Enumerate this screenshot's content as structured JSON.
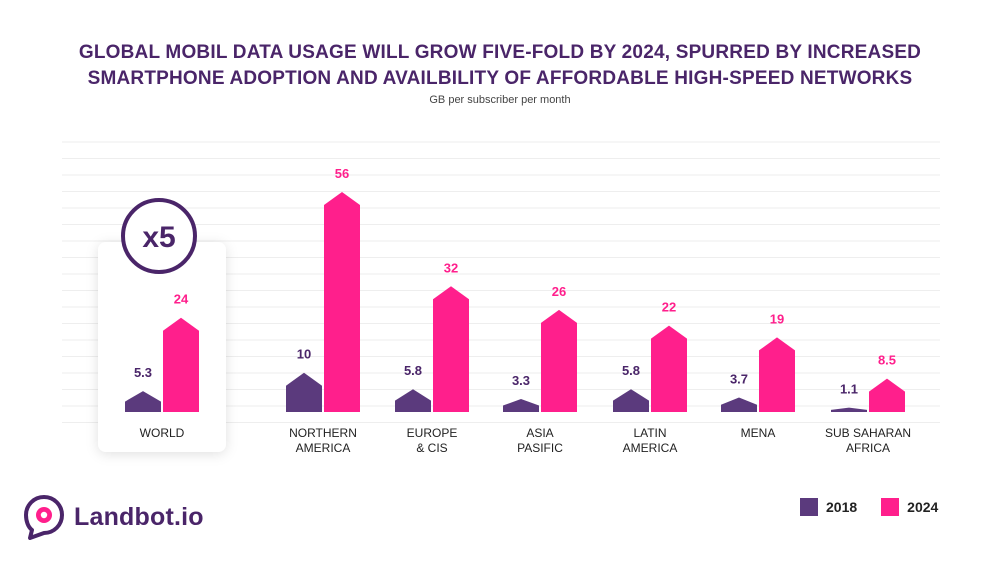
{
  "title_line1": "GLOBAL MOBIL DATA USAGE WILL GROW FIVE-FOLD BY 2024, SPURRED BY INCREASED",
  "title_line2": "SMARTPHONE ADOPTION AND AVAILBILITY OF AFFORDABLE HIGH-SPEED NETWORKS",
  "subtitle": "GB per subscriber per month",
  "badge": "x5",
  "logo_text": "Landbot.io",
  "colors": {
    "series_2018": "#5b3a7d",
    "series_2024": "#ff1f8c",
    "title": "#4a2569"
  },
  "chart_data": {
    "type": "bar",
    "title": "GLOBAL MOBIL DATA USAGE WILL GROW FIVE-FOLD BY 2024, SPURRED BY INCREASED SMARTPHONE ADOPTION AND AVAILBILITY OF AFFORDABLE HIGH-SPEED NETWORKS",
    "subtitle": "GB per subscriber per month",
    "categories": [
      [
        "WORLD"
      ],
      [
        "NORTHERN",
        "AMERICA"
      ],
      [
        "EUROPE",
        "& CIS"
      ],
      [
        "ASIA",
        "PASIFIC"
      ],
      [
        "LATIN",
        "AMERICA"
      ],
      [
        "MENA"
      ],
      [
        "SUB SAHARAN",
        "AFRICA"
      ]
    ],
    "series": [
      {
        "name": "2018",
        "values": [
          5.3,
          10,
          5.8,
          3.3,
          5.8,
          3.7,
          1.1
        ],
        "labels": [
          "5.3",
          "10",
          "5.8",
          "3.3",
          "5.8",
          "3.7",
          "1.1"
        ]
      },
      {
        "name": "2024",
        "values": [
          24,
          56,
          32,
          26,
          22,
          19,
          8.5
        ],
        "labels": [
          "24",
          "56",
          "32",
          "26",
          "22",
          "19",
          "8.5"
        ]
      }
    ],
    "ylim": [
      0,
      60
    ],
    "grid": true,
    "legend": "bottom-right"
  }
}
